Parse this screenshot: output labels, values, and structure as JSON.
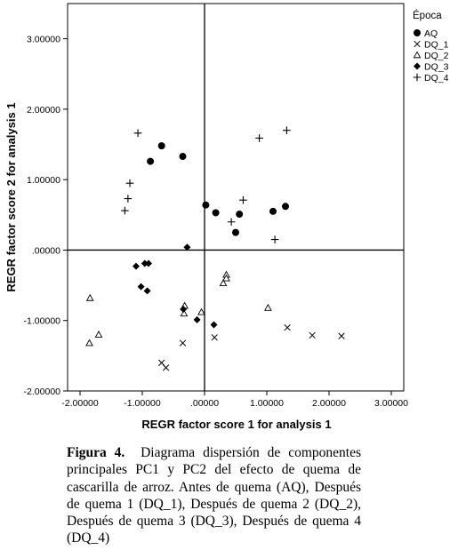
{
  "chart_data": {
    "type": "scatter",
    "xlabel": "REGR factor score   1 for analysis 1",
    "ylabel": "REGR factor score   2 for analysis 1",
    "xlim": [
      -2.2,
      3.2
    ],
    "ylim": [
      -2.0,
      3.5
    ],
    "x_ticks": [
      -2.0,
      -1.0,
      0.0,
      1.0,
      2.0,
      3.0
    ],
    "x_tick_labels": [
      "-2.00000",
      "-1.00000",
      ".00000",
      "1.00000",
      "2.00000",
      "3.00000"
    ],
    "y_ticks": [
      -2.0,
      -1.0,
      0.0,
      1.0,
      2.0,
      3.0
    ],
    "y_tick_labels": [
      "-2.00000",
      "-1.00000",
      ".00000",
      "1.00000",
      "2.00000",
      "3.00000"
    ],
    "reference_lines": {
      "x": 0,
      "y": 0
    },
    "grid": false,
    "legend": {
      "title": "Época",
      "position": "right"
    },
    "series": [
      {
        "name": "AQ",
        "marker": "circle",
        "points": [
          [
            -0.87,
            1.26
          ],
          [
            -0.69,
            1.48
          ],
          [
            -0.35,
            1.33
          ],
          [
            0.02,
            0.64
          ],
          [
            0.18,
            0.53
          ],
          [
            0.5,
            0.25
          ],
          [
            0.56,
            0.51
          ],
          [
            1.1,
            0.55
          ],
          [
            1.3,
            0.62
          ]
        ]
      },
      {
        "name": "DQ_1",
        "marker": "x",
        "points": [
          [
            -0.69,
            -1.6
          ],
          [
            -0.62,
            -1.67
          ],
          [
            -0.35,
            -1.32
          ],
          [
            0.16,
            -1.24
          ],
          [
            1.33,
            -1.1
          ],
          [
            1.73,
            -1.21
          ],
          [
            2.2,
            -1.22
          ]
        ]
      },
      {
        "name": "DQ_2",
        "marker": "triangle",
        "points": [
          [
            -1.84,
            -0.68
          ],
          [
            -1.85,
            -1.32
          ],
          [
            -1.7,
            -1.2
          ],
          [
            -0.33,
            -0.9
          ],
          [
            -0.32,
            -0.79
          ],
          [
            -0.05,
            -0.88
          ],
          [
            0.3,
            -0.47
          ],
          [
            0.35,
            -0.35
          ],
          [
            0.35,
            -0.4
          ],
          [
            1.02,
            -0.82
          ]
        ]
      },
      {
        "name": "DQ_3",
        "marker": "diamond",
        "points": [
          [
            -1.1,
            -0.23
          ],
          [
            -0.96,
            -0.19
          ],
          [
            -0.9,
            -0.19
          ],
          [
            -1.02,
            -0.52
          ],
          [
            -0.92,
            -0.58
          ],
          [
            -0.28,
            0.04
          ],
          [
            -0.34,
            -0.84
          ],
          [
            -0.12,
            -0.99
          ],
          [
            0.15,
            -1.06
          ]
        ]
      },
      {
        "name": "DQ_4",
        "marker": "plus",
        "points": [
          [
            -1.07,
            1.66
          ],
          [
            -1.2,
            0.95
          ],
          [
            -1.23,
            0.73
          ],
          [
            -1.28,
            0.56
          ],
          [
            0.62,
            0.71
          ],
          [
            0.43,
            0.4
          ],
          [
            0.88,
            1.59
          ],
          [
            1.32,
            1.7
          ],
          [
            1.13,
            0.15
          ]
        ]
      }
    ]
  },
  "caption": {
    "label": "Figura 4.",
    "text": "Diagrama dispersión de componentes principales PC1 y PC2 del efecto de quema de cascarilla de arroz. Antes de quema (AQ), Después de quema 1 (DQ_1), Después de quema 2 (DQ_2), Después de quema 3 (DQ_3), Después de quema 4 (DQ_4)"
  }
}
